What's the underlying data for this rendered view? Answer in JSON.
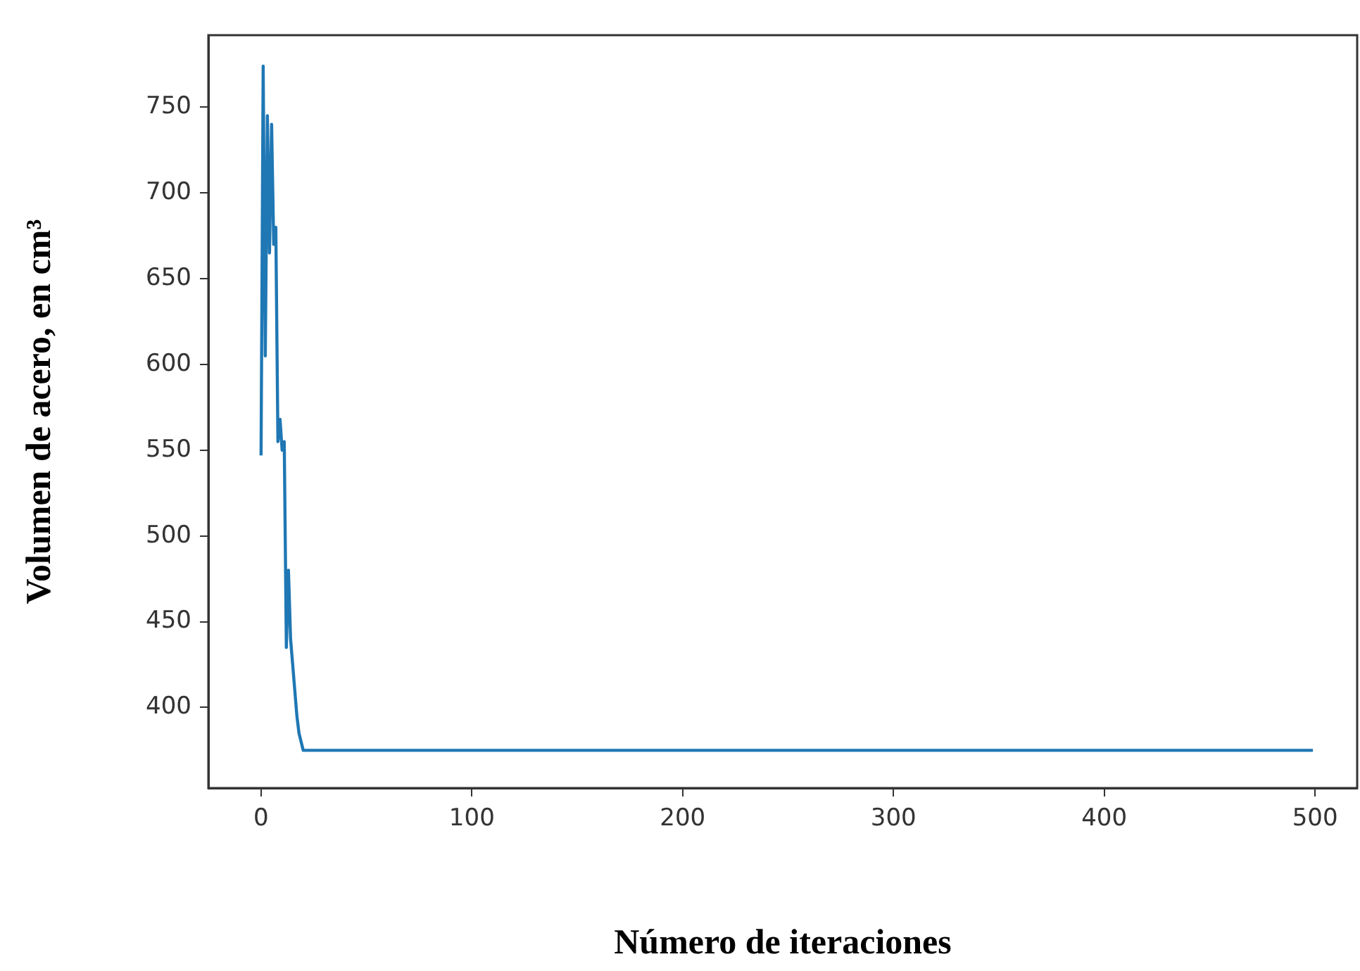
{
  "chart_data": {
    "type": "line",
    "xlabel": "Número de iteraciones",
    "ylabel": "Volumen de acero, en cm³",
    "x": [
      0,
      1,
      2,
      3,
      4,
      5,
      6,
      7,
      8,
      9,
      10,
      11,
      12,
      13,
      14,
      15,
      16,
      17,
      18,
      19,
      20,
      499
    ],
    "series": [
      {
        "color": "#1f77b4",
        "values": [
          547,
          774,
          605,
          745,
          665,
          740,
          670,
          680,
          555,
          568,
          550,
          555,
          435,
          480,
          440,
          425,
          410,
          395,
          385,
          380,
          375,
          375
        ]
      }
    ],
    "xlim": [
      -25,
      520
    ],
    "xticks": [
      0,
      100,
      200,
      300,
      400,
      500
    ],
    "ylim": [
      353,
      792
    ],
    "yticks": [
      400,
      450,
      500,
      550,
      600,
      650,
      700,
      750
    ],
    "grid": false
  }
}
